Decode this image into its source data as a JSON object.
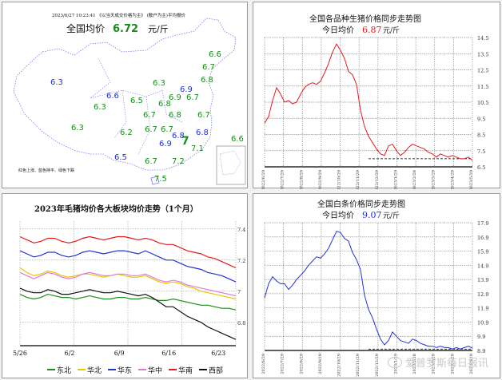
{
  "colors": {
    "red": "#e41a1c",
    "blue": "#1f33d6",
    "green": "#1a8c1a",
    "map_text": "#1f33d6"
  },
  "map": {
    "header": "2023/6/27   10:23:41  《以当天成交价格为主》  (散户为主)平均报价",
    "title_prefix": "全国均价",
    "value": "6.72",
    "unit": "元/斤",
    "legend": "红色上涨、蓝色持平、绿色下跌",
    "prices": [
      {
        "v": "6.6",
        "c": "green"
      },
      {
        "v": "6.7",
        "c": "green"
      },
      {
        "v": "6.8",
        "c": "green"
      },
      {
        "v": "6.3",
        "c": "blue"
      },
      {
        "v": "6.3",
        "c": "green"
      },
      {
        "v": "6.9",
        "c": "blue"
      },
      {
        "v": "6.6",
        "c": "blue"
      },
      {
        "v": "6.3",
        "c": "green"
      },
      {
        "v": "6.5",
        "c": "green"
      },
      {
        "v": "6.8",
        "c": "green"
      },
      {
        "v": "6.9",
        "c": "green"
      },
      {
        "v": "6.7",
        "c": "green"
      },
      {
        "v": "6.8",
        "c": "green"
      },
      {
        "v": "6.7",
        "c": "green"
      },
      {
        "v": "6.7",
        "c": "green"
      },
      {
        "v": "6.3",
        "c": "green"
      },
      {
        "v": "6.2",
        "c": "green"
      },
      {
        "v": "6.7",
        "c": "green"
      },
      {
        "v": "6.7",
        "c": "green"
      },
      {
        "v": "6.8",
        "c": "blue"
      },
      {
        "v": "6.8",
        "c": "blue"
      },
      {
        "v": "6.9",
        "c": "blue"
      },
      {
        "v": "7",
        "c": "green"
      },
      {
        "v": "6.5",
        "c": "blue"
      },
      {
        "v": "6.7",
        "c": "green"
      },
      {
        "v": "7.2",
        "c": "green"
      },
      {
        "v": "7.1",
        "c": "green"
      },
      {
        "v": "7.5",
        "c": "green"
      },
      {
        "v": "6.6",
        "c": "green"
      }
    ]
  },
  "chart_data": [
    {
      "type": "line",
      "title": "全国各品种生猪价格同步走势图",
      "subtitle_prefix": "今日均价",
      "subtitle_value": "6.87",
      "subtitle_unit": "元/斤",
      "ylim": [
        6.5,
        14.5
      ],
      "yticks": [
        "14.5",
        "13.5",
        "12.5",
        "11.5",
        "10.5",
        "9.5",
        "8.5",
        "7.5",
        "6.5"
      ],
      "xticks": [
        "2022/6/29",
        "2022/7/29",
        "2022/8/29",
        "2022/9/29",
        "2022/10/29",
        "2022/11/29",
        "2022/12/29",
        "2023/1/29",
        "2023/2/28",
        "2023/3/29",
        "2023/4/29",
        "2023/5/29"
      ],
      "series": [
        {
          "color": "#e41a1c",
          "values": [
            9.2,
            9.6,
            10.6,
            11.4,
            11.0,
            10.5,
            10.6,
            10.4,
            10.5,
            11.0,
            11.4,
            11.6,
            11.7,
            11.6,
            11.8,
            12.3,
            12.9,
            13.6,
            14.1,
            13.7,
            13.2,
            12.4,
            12.2,
            11.6,
            10.0,
            9.0,
            8.4,
            8.0,
            7.6,
            7.3,
            7.2,
            7.8,
            7.9,
            7.5,
            7.2,
            7.4,
            7.7,
            7.9,
            7.8,
            7.7,
            7.6,
            7.4,
            7.3,
            7.1,
            7.3,
            7.2,
            7.1,
            7.2,
            7.1,
            7.0,
            7.0,
            7.1,
            6.9
          ]
        }
      ]
    },
    {
      "type": "line",
      "title": "2023年毛猪均价各大板块均价走势（1个月）",
      "ylim": [
        6.65,
        7.45
      ],
      "yticks": [
        "7.4",
        "7.2",
        "7",
        "6.8"
      ],
      "xticks": [
        "5/26",
        "6/2",
        "6/9",
        "6/16",
        "6/23"
      ],
      "series": [
        {
          "name": "东北",
          "color": "#1a8c1a",
          "values": [
            6.98,
            6.96,
            6.95,
            6.96,
            6.98,
            6.97,
            6.96,
            6.96,
            6.95,
            6.96,
            6.97,
            6.96,
            6.95,
            6.95,
            6.96,
            6.96,
            6.95,
            6.95,
            6.96,
            6.95,
            6.94,
            6.94,
            6.95,
            6.94,
            6.93,
            6.92,
            6.91,
            6.91,
            6.9,
            6.89,
            6.89,
            6.88
          ]
        },
        {
          "name": "华北",
          "color": "#e6c700",
          "values": [
            7.15,
            7.12,
            7.1,
            7.11,
            7.13,
            7.12,
            7.1,
            7.09,
            7.1,
            7.11,
            7.11,
            7.1,
            7.09,
            7.1,
            7.11,
            7.1,
            7.09,
            7.09,
            7.1,
            7.08,
            7.06,
            7.05,
            7.06,
            7.05,
            7.03,
            7.02,
            7.0,
            6.99,
            6.98,
            6.97,
            6.96,
            6.95
          ]
        },
        {
          "name": "华东",
          "color": "#1f33d6",
          "values": [
            7.26,
            7.24,
            7.22,
            7.23,
            7.25,
            7.25,
            7.23,
            7.22,
            7.23,
            7.25,
            7.26,
            7.25,
            7.24,
            7.25,
            7.26,
            7.26,
            7.25,
            7.24,
            7.26,
            7.24,
            7.22,
            7.2,
            7.2,
            7.18,
            7.16,
            7.15,
            7.14,
            7.12,
            7.11,
            7.1,
            7.08,
            7.06
          ]
        },
        {
          "name": "华中",
          "color": "#e07ad8",
          "values": [
            7.12,
            7.1,
            7.08,
            7.1,
            7.12,
            7.11,
            7.09,
            7.08,
            7.09,
            7.11,
            7.12,
            7.11,
            7.1,
            7.1,
            7.11,
            7.11,
            7.1,
            7.1,
            7.11,
            7.09,
            7.07,
            7.06,
            7.07,
            7.06,
            7.04,
            7.03,
            7.02,
            7.01,
            7.0,
            6.99,
            6.98,
            6.97
          ]
        },
        {
          "name": "华南",
          "color": "#e41a1c",
          "values": [
            7.35,
            7.33,
            7.31,
            7.32,
            7.34,
            7.34,
            7.32,
            7.31,
            7.32,
            7.34,
            7.35,
            7.34,
            7.33,
            7.34,
            7.35,
            7.35,
            7.34,
            7.33,
            7.34,
            7.33,
            7.31,
            7.3,
            7.3,
            7.28,
            7.26,
            7.25,
            7.24,
            7.22,
            7.21,
            7.19,
            7.17,
            7.15
          ]
        },
        {
          "name": "西部",
          "color": "#111111",
          "values": [
            7.02,
            7.0,
            6.99,
            6.99,
            7.01,
            7.0,
            6.98,
            6.98,
            6.99,
            7.0,
            7.01,
            7.0,
            6.99,
            6.99,
            7.0,
            6.99,
            6.98,
            6.97,
            6.98,
            6.96,
            6.93,
            6.9,
            6.9,
            6.87,
            6.84,
            6.82,
            6.8,
            6.77,
            6.75,
            6.73,
            6.71,
            6.69
          ]
        }
      ]
    },
    {
      "type": "line",
      "title": "全国白条价格同步走势图",
      "subtitle_prefix": "今日均价",
      "subtitle_value": "9.07",
      "subtitle_unit": "元/斤",
      "ylim": [
        8.9,
        17.9
      ],
      "yticks": [
        "17.9",
        "16.9",
        "15.9",
        "14.9",
        "13.9",
        "12.9",
        "11.9",
        "10.9",
        "9.9",
        "8.9"
      ],
      "xticks": [
        "2022/6/29",
        "2022/7/29",
        "2022/8/29",
        "2022/9/29",
        "2022/10/29",
        "2022/11/29",
        "2022/12/29",
        "2023/1/29",
        "2023/2/28",
        "2023/3/29",
        "2023/4/29",
        "2023/5/29"
      ],
      "series": [
        {
          "color": "#1f33d6",
          "values": [
            12.6,
            13.6,
            14.1,
            13.8,
            13.6,
            13.6,
            13.2,
            13.5,
            13.9,
            14.2,
            14.5,
            14.9,
            15.2,
            15.5,
            15.4,
            15.7,
            16.1,
            16.7,
            17.3,
            17.2,
            16.8,
            16.6,
            15.8,
            15.3,
            14.6,
            12.8,
            11.8,
            11.2,
            10.4,
            9.7,
            9.3,
            9.6,
            10.2,
            9.9,
            9.6,
            9.5,
            9.4,
            9.7,
            9.6,
            9.4,
            9.3,
            9.2,
            9.2,
            9.1,
            9.2,
            9.1,
            9.1,
            9.0,
            9.1,
            9.0,
            9.1,
            9.2,
            9.07
          ]
        }
      ]
    }
  ],
  "watermark": "爱普罗斯每日报讯"
}
